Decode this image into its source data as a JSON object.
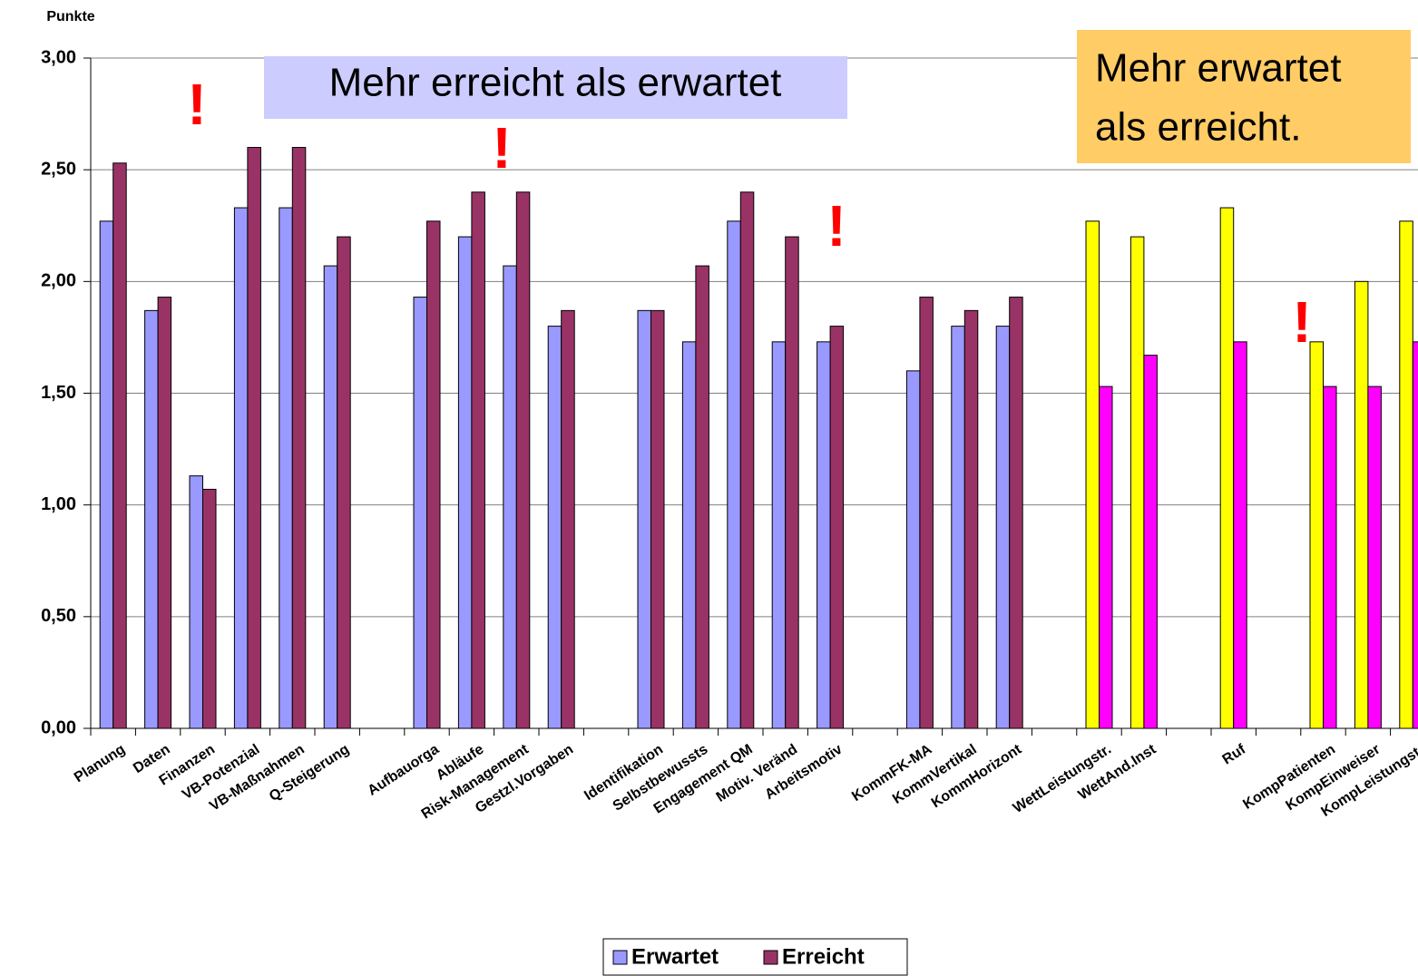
{
  "chart_data": {
    "type": "bar",
    "y_label": "Punkte",
    "categories": [
      "Planung",
      "Daten",
      "Finanzen",
      "VB-Potenzial",
      "VB-Maßnahmen",
      "Q-Steigerung",
      null,
      "Aufbauorga",
      "Abläufe",
      "Risk-Management",
      "Gestzl.Vorgaben",
      null,
      "Identifikation",
      "Selbstbewussts",
      "Engagement QM",
      "Motiv. Veränd",
      "Arbeitsmotiv",
      null,
      "KommFK-MA",
      "KommVertikal",
      "KommHorizont",
      null,
      "WettLeistungstr.",
      "WettAnd.Inst",
      null,
      "Ruf",
      null,
      "KompPatienten",
      "KompEinweiser",
      "KompLeistungstr"
    ],
    "series": [
      {
        "name": "Erwartet",
        "color": "#9999ff",
        "colors": [
          "#9999ff",
          "#9999ff",
          "#9999ff",
          "#9999ff",
          "#9999ff",
          "#9999ff",
          "#9999ff",
          "#9999ff",
          "#9999ff",
          "#9999ff",
          "#9999ff",
          "#9999ff",
          "#9999ff",
          "#9999ff",
          "#9999ff",
          "#9999ff",
          "#9999ff",
          "#9999ff",
          "#9999ff",
          "#9999ff",
          "#9999ff",
          "#9999ff",
          "#ffff00",
          "#ffff00",
          "#ffff00",
          "#ffff00",
          "#ffff00",
          "#ffff00",
          "#ffff00",
          "#ffff00"
        ],
        "values": [
          2.27,
          1.87,
          1.13,
          2.33,
          2.33,
          2.07,
          null,
          1.93,
          2.2,
          2.07,
          1.8,
          null,
          1.87,
          1.73,
          2.27,
          1.73,
          1.73,
          null,
          1.6,
          1.8,
          1.8,
          null,
          2.27,
          2.2,
          null,
          2.33,
          null,
          1.73,
          2.0,
          2.27
        ]
      },
      {
        "name": "Erreicht",
        "color": "#993366",
        "colors": [
          "#993366",
          "#993366",
          "#993366",
          "#993366",
          "#993366",
          "#993366",
          "#993366",
          "#993366",
          "#993366",
          "#993366",
          "#993366",
          "#993366",
          "#993366",
          "#993366",
          "#993366",
          "#993366",
          "#993366",
          "#993366",
          "#993366",
          "#993366",
          "#993366",
          "#993366",
          "#ff00ff",
          "#ff00ff",
          "#ff00ff",
          "#ff00ff",
          "#ff00ff",
          "#ff00ff",
          "#ff00ff",
          "#ff00ff"
        ],
        "values": [
          2.53,
          1.93,
          1.07,
          2.6,
          2.6,
          2.2,
          null,
          2.27,
          2.4,
          2.4,
          1.87,
          null,
          1.87,
          2.07,
          2.4,
          2.2,
          1.8,
          null,
          1.93,
          1.87,
          1.93,
          null,
          1.53,
          1.67,
          null,
          1.73,
          null,
          1.53,
          1.53,
          1.73
        ]
      }
    ],
    "ylim": [
      0,
      3
    ],
    "yticks": [
      {
        "value": 0,
        "label": "0,00"
      },
      {
        "value": 0.5,
        "label": "0,50"
      },
      {
        "value": 1,
        "label": "1,00"
      },
      {
        "value": 1.5,
        "label": "1,50"
      },
      {
        "value": 2,
        "label": "2,00"
      },
      {
        "value": 2.5,
        "label": "2,50"
      },
      {
        "value": 3,
        "label": "3,00"
      }
    ],
    "grid": true,
    "legend": "bottom",
    "annotations": [
      {
        "text": "Mehr erreicht als erwartet",
        "color": "#ccccff"
      },
      {
        "text": [
          "Mehr erwartet",
          "als erreicht."
        ],
        "color": "#ffcc66"
      },
      {
        "text": "!",
        "color": "#ff0000"
      },
      {
        "text": "!",
        "color": "#ff0000"
      },
      {
        "text": "!",
        "color": "#ff0000"
      },
      {
        "text": "!",
        "color": "#ff0000"
      }
    ]
  }
}
